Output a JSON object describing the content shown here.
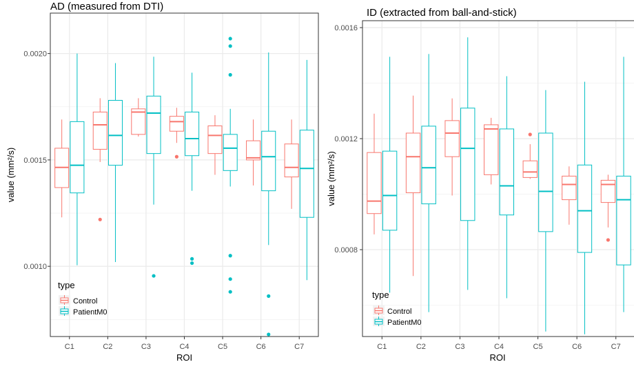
{
  "colors": {
    "control": "#F8766D",
    "patient": "#00BFC4",
    "grid": "#EBEBEB",
    "panel_border": "#333333",
    "text": "#000000",
    "axis_text": "#4D4D4D"
  },
  "legend": {
    "title": "type",
    "entries": [
      "Control",
      "PatientM0"
    ]
  },
  "chart_data": [
    {
      "type": "boxplot",
      "title": "AD (measured from DTI)",
      "xlabel": "ROI",
      "ylabel": "value (mm²/s)",
      "categories": [
        "C1",
        "C2",
        "C3",
        "C4",
        "C5",
        "C6",
        "C7"
      ],
      "yticks": [
        0.001,
        0.0015,
        0.002
      ],
      "ytick_labels": [
        "0.0010",
        "0.0015",
        "0.0020"
      ],
      "ylim": [
        0.00067,
        0.00219
      ],
      "grid": true,
      "legend_position": "bottom-left inside",
      "series": [
        {
          "name": "Control",
          "boxes": [
            {
              "min": 0.00123,
              "q1": 0.00137,
              "median": 0.001465,
              "q3": 0.001555,
              "max": 0.00169,
              "outliers": []
            },
            {
              "min": 0.00149,
              "q1": 0.00155,
              "median": 0.001665,
              "q3": 0.001725,
              "max": 0.00179,
              "outliers": [
                0.00122
              ]
            },
            {
              "min": 0.00161,
              "q1": 0.00162,
              "median": 0.001725,
              "q3": 0.00174,
              "max": 0.00179,
              "outliers": []
            },
            {
              "min": 0.00158,
              "q1": 0.001635,
              "median": 0.00168,
              "q3": 0.001705,
              "max": 0.001745,
              "outliers": [
                0.001515
              ]
            },
            {
              "min": 0.00143,
              "q1": 0.00153,
              "median": 0.001615,
              "q3": 0.00166,
              "max": 0.00171,
              "outliers": []
            },
            {
              "min": 0.00138,
              "q1": 0.0015,
              "median": 0.00151,
              "q3": 0.00159,
              "max": 0.00169,
              "outliers": []
            },
            {
              "min": 0.00127,
              "q1": 0.00142,
              "median": 0.001465,
              "q3": 0.001575,
              "max": 0.00169,
              "outliers": []
            }
          ]
        },
        {
          "name": "PatientM0",
          "boxes": [
            {
              "min": 0.001005,
              "q1": 0.001345,
              "median": 0.001475,
              "q3": 0.00168,
              "max": 0.002,
              "outliers": []
            },
            {
              "min": 0.00102,
              "q1": 0.001475,
              "median": 0.001615,
              "q3": 0.00178,
              "max": 0.001955,
              "outliers": []
            },
            {
              "min": 0.00129,
              "q1": 0.00153,
              "median": 0.00172,
              "q3": 0.0018,
              "max": 0.001985,
              "outliers": [
                0.000955
              ]
            },
            {
              "min": 0.001355,
              "q1": 0.00152,
              "median": 0.0016,
              "q3": 0.001725,
              "max": 0.00191,
              "outliers": [
                0.001035,
                0.001015
              ]
            },
            {
              "min": 0.001375,
              "q1": 0.00145,
              "median": 0.001555,
              "q3": 0.00162,
              "max": 0.00174,
              "outliers": [
                0.00207,
                0.002035,
                0.0019,
                0.00105,
                0.00094,
                0.00088
              ]
            },
            {
              "min": 0.0011,
              "q1": 0.001355,
              "median": 0.001515,
              "q3": 0.001635,
              "max": 0.002005,
              "outliers": [
                0.00086,
                0.00068
              ]
            },
            {
              "min": 0.000935,
              "q1": 0.00123,
              "median": 0.00146,
              "q3": 0.00164,
              "max": 0.00197,
              "outliers": []
            }
          ]
        }
      ]
    },
    {
      "type": "boxplot",
      "title": "ID (extracted from ball-and-stick)",
      "xlabel": "ROI",
      "ylabel": "value (mm²/s)",
      "categories": [
        "C1",
        "C2",
        "C3",
        "C4",
        "C5",
        "C6",
        "C7"
      ],
      "yticks": [
        0.0008,
        0.0012,
        0.0016
      ],
      "ytick_labels": [
        "0.0008",
        "0.0012",
        "0.0016"
      ],
      "ylim": [
        0.000487,
        0.001625
      ],
      "grid": true,
      "legend_position": "bottom-left inside",
      "series": [
        {
          "name": "Control",
          "boxes": [
            {
              "min": 0.000855,
              "q1": 0.00093,
              "median": 0.000975,
              "q3": 0.00115,
              "max": 0.00129,
              "outliers": []
            },
            {
              "min": 0.000705,
              "q1": 0.001005,
              "median": 0.001135,
              "q3": 0.00122,
              "max": 0.001355,
              "outliers": []
            },
            {
              "min": 0.000995,
              "q1": 0.001135,
              "median": 0.00122,
              "q3": 0.001265,
              "max": 0.001345,
              "outliers": []
            },
            {
              "min": 0.001035,
              "q1": 0.00107,
              "median": 0.001235,
              "q3": 0.00125,
              "max": 0.001275,
              "outliers": []
            },
            {
              "min": 0.001055,
              "q1": 0.00106,
              "median": 0.00108,
              "q3": 0.00112,
              "max": 0.00118,
              "outliers": [
                0.001215
              ]
            },
            {
              "min": 0.00089,
              "q1": 0.00098,
              "median": 0.001035,
              "q3": 0.001065,
              "max": 0.0011,
              "outliers": []
            },
            {
              "min": 0.00088,
              "q1": 0.00097,
              "median": 0.001035,
              "q3": 0.00105,
              "max": 0.00107,
              "outliers": [
                0.000835
              ]
            }
          ]
        },
        {
          "name": "PatientM0",
          "boxes": [
            {
              "min": 0.000645,
              "q1": 0.00087,
              "median": 0.000995,
              "q3": 0.001155,
              "max": 0.001495,
              "outliers": []
            },
            {
              "min": 0.000575,
              "q1": 0.000965,
              "median": 0.001095,
              "q3": 0.001245,
              "max": 0.001505,
              "outliers": []
            },
            {
              "min": 0.000655,
              "q1": 0.000905,
              "median": 0.001165,
              "q3": 0.00131,
              "max": 0.001565,
              "outliers": []
            },
            {
              "min": 0.000625,
              "q1": 0.000925,
              "median": 0.00103,
              "q3": 0.001235,
              "max": 0.001425,
              "outliers": []
            },
            {
              "min": 0.000505,
              "q1": 0.000865,
              "median": 0.00101,
              "q3": 0.00122,
              "max": 0.001375,
              "outliers": []
            },
            {
              "min": 0.000495,
              "q1": 0.00079,
              "median": 0.00094,
              "q3": 0.001105,
              "max": 0.001405,
              "outliers": []
            },
            {
              "min": 0.000575,
              "q1": 0.000745,
              "median": 0.00098,
              "q3": 0.001065,
              "max": 0.001495,
              "outliers": []
            }
          ]
        }
      ]
    }
  ]
}
